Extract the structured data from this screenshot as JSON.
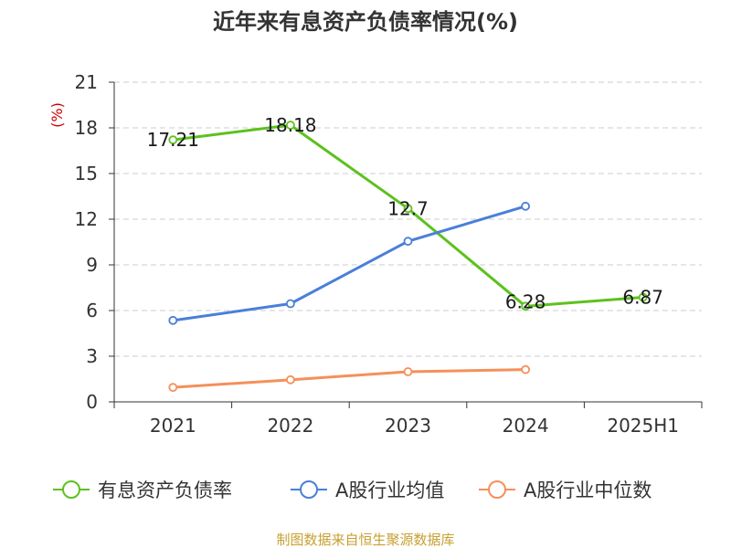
{
  "chart_data": {
    "type": "line",
    "title": "近年来有息资产负债率情况(%)",
    "ylabel": "(%)",
    "xlabel": "",
    "ylim": [
      0,
      21
    ],
    "yticks": [
      0,
      3,
      6,
      9,
      12,
      15,
      18,
      21
    ],
    "categories": [
      "2021",
      "2022",
      "2023",
      "2024",
      "2025H1"
    ],
    "series": [
      {
        "name": "有息资产负债率",
        "values": [
          17.21,
          18.18,
          12.7,
          6.28,
          6.87
        ],
        "color": "#5dc11e",
        "show_labels": true
      },
      {
        "name": "A股行业均值",
        "values": [
          5.35,
          6.45,
          10.55,
          12.85,
          null
        ],
        "color": "#4a7fd9",
        "show_labels": false
      },
      {
        "name": "A股行业中位数",
        "values": [
          0.95,
          1.45,
          1.98,
          2.12,
          null
        ],
        "color": "#f4905a",
        "show_labels": false
      }
    ],
    "data_labels": [
      "17.21",
      "18.18",
      "12.7",
      "6.28",
      "6.87"
    ],
    "grid": "horizontal-dashed",
    "legend_position": "bottom"
  },
  "colors": {
    "axis": "#333333",
    "grid": "#cccccc",
    "unit": "#cc0000",
    "source": "#c8a032"
  },
  "source_text": "制图数据来自恒生聚源数据库"
}
